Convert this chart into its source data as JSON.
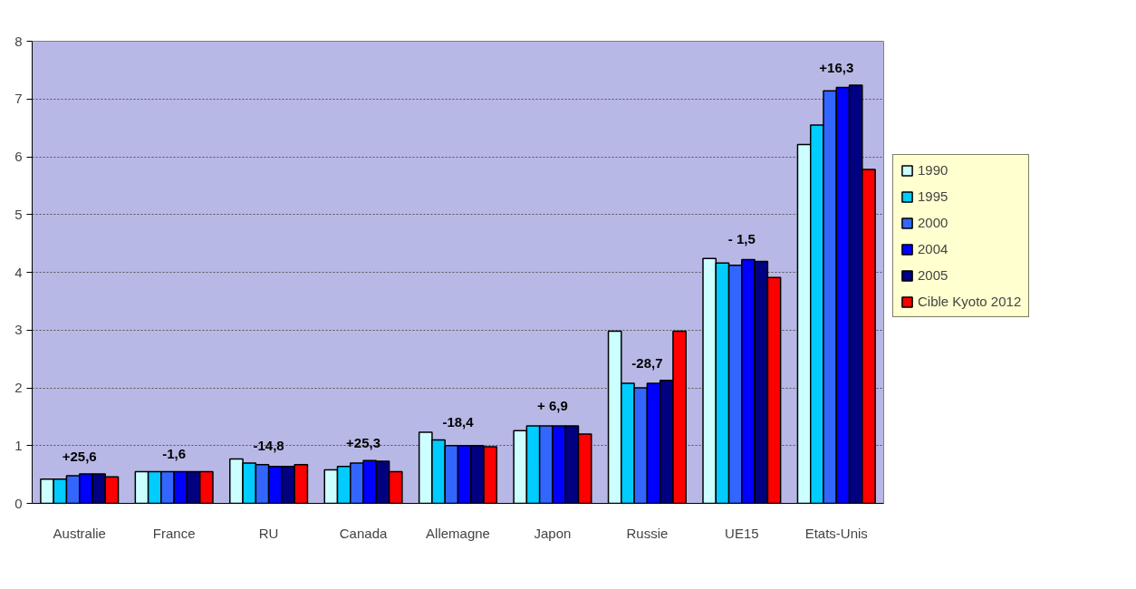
{
  "chart_data": {
    "type": "bar",
    "categories": [
      "Australie",
      "France",
      "RU",
      "Canada",
      "Allemagne",
      "Japon",
      "Russie",
      "UE15",
      "Etats-Unis"
    ],
    "series": [
      {
        "name": "1990",
        "color": "#ccffff",
        "values": [
          0.42,
          0.55,
          0.77,
          0.58,
          1.23,
          1.26,
          2.98,
          4.24,
          6.21
        ]
      },
      {
        "name": "1995",
        "color": "#00ccff",
        "values": [
          0.42,
          0.55,
          0.7,
          0.64,
          1.1,
          1.34,
          2.08,
          4.16,
          6.55
        ]
      },
      {
        "name": "2000",
        "color": "#3366ff",
        "values": [
          0.48,
          0.55,
          0.67,
          0.7,
          1.0,
          1.34,
          2.0,
          4.12,
          7.14
        ]
      },
      {
        "name": "2004",
        "color": "#0000ff",
        "values": [
          0.51,
          0.55,
          0.64,
          0.74,
          1.0,
          1.34,
          2.08,
          4.22,
          7.2
        ]
      },
      {
        "name": "2005",
        "color": "#000080",
        "values": [
          0.51,
          0.55,
          0.64,
          0.73,
          1.0,
          1.34,
          2.13,
          4.19,
          7.24
        ]
      },
      {
        "name": "Cible Kyoto 2012",
        "color": "#ff0000",
        "values": [
          0.46,
          0.55,
          0.67,
          0.55,
          0.98,
          1.2,
          2.98,
          3.91,
          5.78
        ]
      }
    ],
    "ylim": [
      0,
      8
    ],
    "yticks": [
      0,
      1,
      2,
      3,
      4,
      5,
      6,
      7,
      8
    ],
    "grid": "y",
    "legend": "right",
    "annotations": [
      "+25,6",
      "-1,6",
      "-14,8",
      "+25,3",
      "-18,4",
      "+ 6,9",
      "-28,7",
      "- 1,5",
      "+16,3"
    ]
  }
}
